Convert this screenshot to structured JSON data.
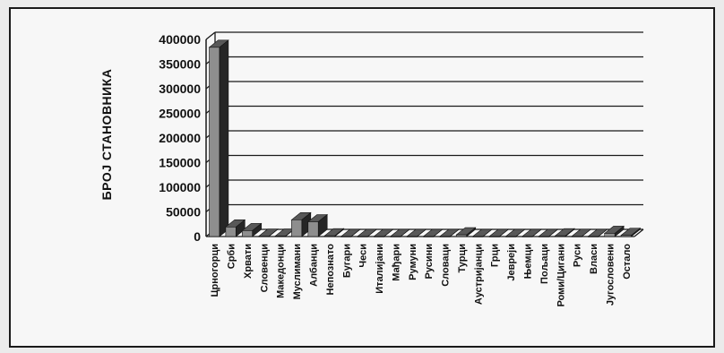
{
  "chart_data": {
    "type": "bar",
    "title": "",
    "ylabel": "БРОЈ СТАНОВНИКА",
    "xlabel": "",
    "ylim": [
      0,
      400000
    ],
    "y_ticks": [
      "0",
      "50000",
      "100000",
      "150000",
      "200000",
      "250000",
      "300000",
      "350000",
      "400000"
    ],
    "categories": [
      "Црногорци",
      "Срби",
      "Хрвати",
      "Словенци",
      "Македонци",
      "Муслимани",
      "Албанци",
      "Непознато",
      "Бугари",
      "Чеси",
      "Италијани",
      "Мађари",
      "Румуни",
      "Русини",
      "Словаци",
      "Турци",
      "Аустријанци",
      "Грци",
      "Јевреји",
      "Њемци",
      "Пољаци",
      "Роми/Цигани",
      "Руси",
      "Власи",
      "Југословени",
      "Остало"
    ],
    "values": [
      383988,
      19425,
      12000,
      500,
      800,
      34000,
      30000,
      1500,
      150,
      150,
      150,
      150,
      150,
      150,
      150,
      3500,
      150,
      150,
      150,
      200,
      150,
      1500,
      300,
      150,
      6500,
      2500
    ],
    "grid": true,
    "legend": "none",
    "colors": {
      "front": "#8e8e8e",
      "side": "#262626",
      "top": "#585858",
      "grid": "#1a1a1a",
      "background": "#f7f7f7"
    }
  }
}
